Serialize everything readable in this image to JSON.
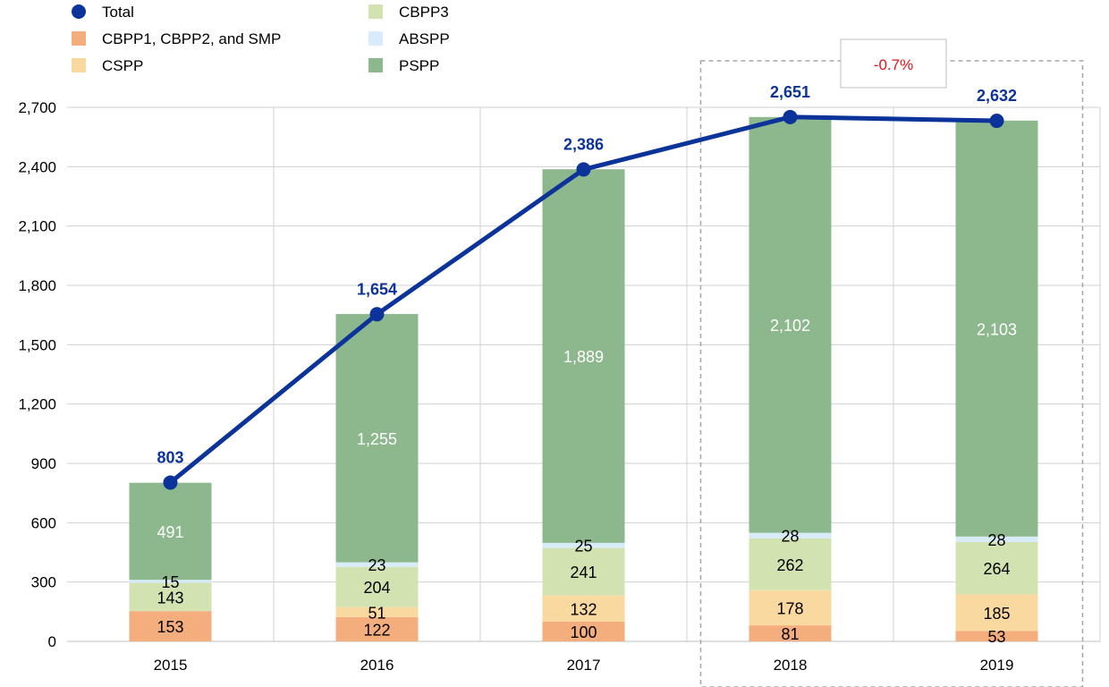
{
  "chart_data": {
    "type": "bar",
    "stacked": true,
    "categories": [
      "2015",
      "2016",
      "2017",
      "2018",
      "2019"
    ],
    "series": [
      {
        "name": "CBPP1, CBPP2, and SMP",
        "values": [
          153,
          122,
          100,
          81,
          53
        ],
        "color": "#f4ad7c",
        "label_color": "#000000"
      },
      {
        "name": "CSPP",
        "values": [
          0,
          51,
          132,
          178,
          185
        ],
        "color": "#fad9a0",
        "label_color": "#000000"
      },
      {
        "name": "CBPP3",
        "values": [
          143,
          204,
          241,
          262,
          264
        ],
        "color": "#d2e2b0",
        "label_color": "#000000"
      },
      {
        "name": "ABSPP",
        "values": [
          15,
          23,
          25,
          28,
          28
        ],
        "color": "#d7ecf8",
        "label_color": "#000000"
      },
      {
        "name": "PSPP",
        "values": [
          491,
          1255,
          1889,
          2102,
          2103
        ],
        "color": "#8db88d",
        "label_color": "#ffffff"
      }
    ],
    "line_series": {
      "name": "Total",
      "values": [
        803,
        1654,
        2386,
        2651,
        2632
      ],
      "color": "#0b3399"
    },
    "bar_labels": [
      [
        "153",
        "122",
        "100",
        "81",
        "53"
      ],
      [
        "",
        "51",
        "132",
        "178",
        "185"
      ],
      [
        "143",
        "204",
        "241",
        "262",
        "264"
      ],
      [
        "15",
        "23",
        "25",
        "28",
        "28"
      ],
      [
        "491",
        "1,255",
        "1,889",
        "2,102",
        "2,103"
      ]
    ],
    "total_labels": [
      "803",
      "1,654",
      "2,386",
      "2,651",
      "2,632"
    ],
    "yticks": [
      0,
      300,
      600,
      900,
      1200,
      1500,
      1800,
      2100,
      2400,
      2700
    ],
    "ytick_labels": [
      "0",
      "300",
      "600",
      "900",
      "1,200",
      "1,500",
      "1,800",
      "2,100",
      "2,400",
      "2,700"
    ],
    "ylim": [
      0,
      2700
    ],
    "grid": true,
    "legend_position": "top-left",
    "legend_order": [
      "Total",
      "CBPP1, CBPP2, and SMP",
      "CSPP",
      "CBPP3",
      "ABSPP",
      "PSPP"
    ],
    "annotation": {
      "text": "-0.7%",
      "spans": [
        "2018",
        "2019"
      ],
      "color": "#e8101a"
    }
  }
}
